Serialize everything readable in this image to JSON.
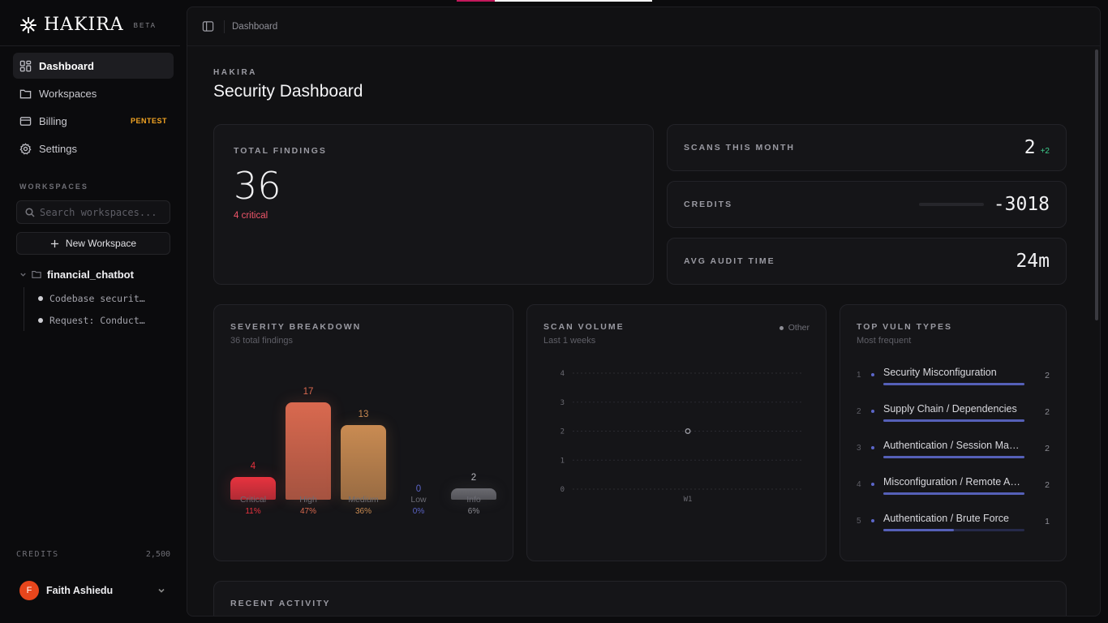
{
  "brand": {
    "name": "HAKIRA",
    "tag": "BETA"
  },
  "nav": [
    {
      "id": "dashboard",
      "label": "Dashboard",
      "icon": "dashboard-icon",
      "active": true
    },
    {
      "id": "workspaces",
      "label": "Workspaces",
      "icon": "folder-icon"
    },
    {
      "id": "billing",
      "label": "Billing",
      "icon": "card-icon",
      "badge": "PENTEST"
    },
    {
      "id": "settings",
      "label": "Settings",
      "icon": "gear-icon"
    }
  ],
  "workspaces_section": {
    "label": "WORKSPACES",
    "search_placeholder": "Search workspaces...",
    "new_label": "New Workspace",
    "tree": {
      "name": "financial_chatbot",
      "children": [
        "Codebase securit…",
        "Request: Conduct…"
      ]
    }
  },
  "sidebar_credits": {
    "label": "CREDITS",
    "value": "2,500"
  },
  "user": {
    "initial": "F",
    "name": "Faith Ashiedu",
    "avatar_color": "#e8461c"
  },
  "header": {
    "breadcrumb": "Dashboard"
  },
  "page": {
    "eyebrow": "HAKIRA",
    "title": "Security Dashboard"
  },
  "total_findings": {
    "label": "TOTAL FINDINGS",
    "value": "36",
    "critical": "4 critical"
  },
  "stats": {
    "scans": {
      "label": "SCANS THIS MONTH",
      "value": "2",
      "delta": "+2"
    },
    "credits": {
      "label": "CREDITS",
      "value": "-3018"
    },
    "audit": {
      "label": "AVG AUDIT TIME",
      "value": "24m"
    }
  },
  "severity": {
    "label": "SEVERITY BREAKDOWN",
    "sub": "36 total findings",
    "chart_data": {
      "type": "bar",
      "categories": [
        "Critical",
        "High",
        "Medium",
        "Low",
        "Info"
      ],
      "values": [
        4,
        17,
        13,
        0,
        2
      ],
      "percent": [
        "11%",
        "47%",
        "36%",
        "0%",
        "6%"
      ],
      "colors": [
        "#e8333f",
        "#d9694f",
        "#c98b52",
        "#5a63c4",
        "#6a6a70"
      ]
    }
  },
  "scan_volume": {
    "label": "SCAN VOLUME",
    "sub": "Last 1 weeks",
    "legend": "Other",
    "chart_data": {
      "type": "line",
      "x": [
        "W1"
      ],
      "series": [
        {
          "name": "Other",
          "values": [
            2
          ]
        }
      ],
      "ylim": [
        0,
        4
      ],
      "yticks": [
        "0",
        "1",
        "2",
        "3",
        "4"
      ],
      "grid": true
    }
  },
  "top_vulns": {
    "label": "TOP VULN TYPES",
    "sub": "Most frequent",
    "items": [
      {
        "rank": "1",
        "name": "Security Misconfiguration",
        "count": "2",
        "value": 2
      },
      {
        "rank": "2",
        "name": "Supply Chain / Dependencies",
        "count": "2",
        "value": 2
      },
      {
        "rank": "3",
        "name": "Authentication / Session Management",
        "count": "2",
        "value": 2
      },
      {
        "rank": "4",
        "name": "Misconfiguration / Remote Access",
        "count": "2",
        "value": 2
      },
      {
        "rank": "5",
        "name": "Authentication / Brute Force",
        "count": "1",
        "value": 1
      }
    ]
  },
  "recent": {
    "label": "RECENT ACTIVITY"
  }
}
